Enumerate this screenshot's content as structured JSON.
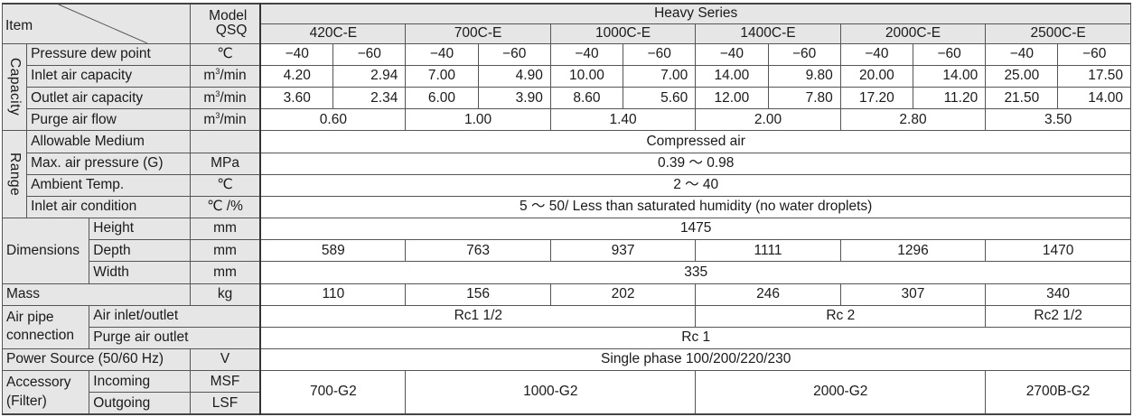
{
  "header": {
    "item": "Item",
    "model_line1": "Model",
    "model_line2": "QSQ",
    "series": "Heavy Series",
    "models": [
      "420C-E",
      "700C-E",
      "1000C-E",
      "1400C-E",
      "2000C-E",
      "2500C-E"
    ]
  },
  "groups": {
    "capacity": "Capacity",
    "range": "Range",
    "dimensions": "Dimensions",
    "mass": "Mass",
    "air_pipe_1": "Air pipe",
    "air_pipe_2": "connection",
    "power": "Power Source (50/60 Hz)",
    "accessory_1": "Accessory",
    "accessory_2": "(Filter)"
  },
  "rows": {
    "dew_point": {
      "label": "Pressure dew point",
      "unit": "℃",
      "values": [
        "−40",
        "−60",
        "−40",
        "−60",
        "−40",
        "−60",
        "−40",
        "−60",
        "−40",
        "−60",
        "−40",
        "−60"
      ]
    },
    "inlet_capacity": {
      "label": "Inlet air capacity",
      "unit_base": "m",
      "unit_sup": "3",
      "unit_tail": "/min",
      "values": [
        "4.20",
        "2.94",
        "7.00",
        "4.90",
        "10.00",
        "7.00",
        "14.00",
        "9.80",
        "20.00",
        "14.00",
        "25.00",
        "17.50"
      ]
    },
    "outlet_capacity": {
      "label": "Outlet air capacity",
      "unit_base": "m",
      "unit_sup": "3",
      "unit_tail": "/min",
      "values": [
        "3.60",
        "2.34",
        "6.00",
        "3.90",
        "8.60",
        "5.60",
        "12.00",
        "7.80",
        "17.20",
        "11.20",
        "21.50",
        "14.00"
      ]
    },
    "purge_flow": {
      "label": "Purge air flow",
      "unit_base": "m",
      "unit_sup": "3",
      "unit_tail": "/min",
      "values": [
        "0.60",
        "1.00",
        "1.40",
        "2.00",
        "2.80",
        "3.50"
      ]
    },
    "medium": {
      "label": "Allowable Medium",
      "unit": "",
      "value": "Compressed air"
    },
    "pressure": {
      "label": "Max. air pressure (G)",
      "unit": "MPa",
      "value": "0.39 ～ 0.98"
    },
    "ambient": {
      "label": "Ambient Temp.",
      "unit": "℃",
      "value": "2 ～ 40"
    },
    "inlet_condition": {
      "label": "Inlet air condition",
      "unit": "℃ /%",
      "value": "5 ～ 50/ Less than saturated humidity (no water droplets)"
    },
    "height": {
      "label": "Height",
      "unit": "mm",
      "value": "1475"
    },
    "depth": {
      "label": "Depth",
      "unit": "mm",
      "values": [
        "589",
        "763",
        "937",
        "1111",
        "1296",
        "1470"
      ]
    },
    "width": {
      "label": "Width",
      "unit": "mm",
      "value": "335"
    },
    "mass": {
      "unit": "kg",
      "values": [
        "110",
        "156",
        "202",
        "246",
        "307",
        "340"
      ]
    },
    "air_inlet": {
      "label": "Air inlet/outlet",
      "values": [
        "Rc1 1/2",
        "Rc 2",
        "Rc2 1/2"
      ]
    },
    "purge_outlet": {
      "label": "Purge air outlet",
      "value": "Rc 1"
    },
    "power": {
      "unit": "V",
      "value": "Single phase 100/200/220/230"
    },
    "incoming": {
      "label": "Incoming",
      "unit": "MSF"
    },
    "outgoing": {
      "label": "Outgoing",
      "unit": "LSF"
    },
    "accessory_values": [
      "700-G2",
      "1000-G2",
      "2000-G2",
      "2700B-G2"
    ]
  }
}
